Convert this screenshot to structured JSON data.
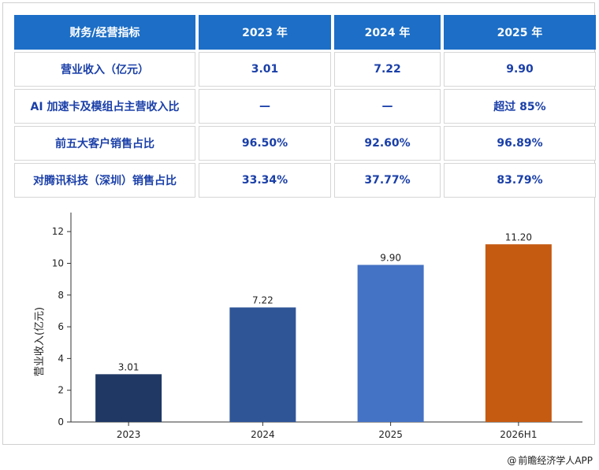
{
  "table": {
    "headers": [
      "财务/经营指标",
      "2023 年",
      "2024 年",
      "2025 年"
    ],
    "rows": [
      {
        "label": "营业收入（亿元）",
        "v2023": "3.01",
        "v2024": "7.22",
        "v2025": "9.90"
      },
      {
        "label": "AI 加速卡及模组占主营收入比",
        "v2023": "—",
        "v2024": "—",
        "v2025": "超过 85%"
      },
      {
        "label": "前五大客户销售占比",
        "v2023": "96.50%",
        "v2024": "92.60%",
        "v2025": "96.89%"
      },
      {
        "label": "对腾讯科技（深圳）销售占比",
        "v2023": "33.34%",
        "v2024": "37.77%",
        "v2025": "83.79%"
      }
    ]
  },
  "chart_data": {
    "type": "bar",
    "categories": [
      "2023",
      "2024",
      "2025",
      "2026H1"
    ],
    "values": [
      3.01,
      7.22,
      9.9,
      11.2
    ],
    "data_labels": [
      "3.01",
      "7.22",
      "9.90",
      "11.20"
    ],
    "colors": [
      "#1f3864",
      "#2f5597",
      "#4472c4",
      "#c55a11"
    ],
    "ylabel": "营业收入(亿元)",
    "ylim": [
      0,
      13
    ],
    "yticks": [
      0,
      2,
      4,
      6,
      8,
      10,
      12
    ],
    "grid": false
  },
  "footer": {
    "copyright_symbol": "@",
    "source": "前瞻经济学人APP"
  }
}
